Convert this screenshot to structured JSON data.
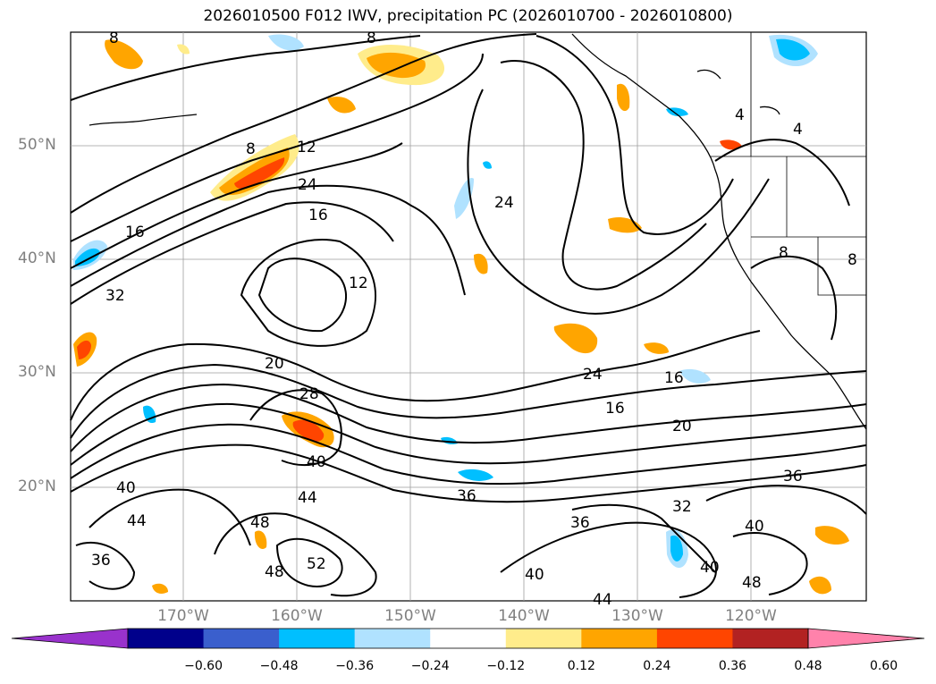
{
  "title": "2026010500 F012 IWV, precipitation PC (2026010700 - 2026010800)",
  "latitude_labels": [
    "50°N",
    "40°N",
    "30°N",
    "20°N"
  ],
  "longitude_labels": [
    "170°W",
    "160°W",
    "150°W",
    "140°W",
    "130°W",
    "120°W"
  ],
  "colorbar": {
    "tick_labels": [
      "−0.60",
      "−0.48",
      "−0.36",
      "−0.24",
      "−0.12",
      "0.12",
      "0.24",
      "0.36",
      "0.48",
      "0.60"
    ],
    "colors": [
      "#9932cc",
      "#00008b",
      "#3a5fcd",
      "#00bfff",
      "#b0e2ff",
      "#ffffff",
      "#ffec8b",
      "#ffa500",
      "#ff4500",
      "#b22222",
      "#ff82ab"
    ],
    "extend": "both"
  },
  "contour_labels": [
    {
      "text": "8"
    },
    {
      "text": "8"
    },
    {
      "text": "12"
    },
    {
      "text": "24"
    },
    {
      "text": "16"
    },
    {
      "text": "16"
    },
    {
      "text": "32"
    },
    {
      "text": "24"
    },
    {
      "text": "12"
    },
    {
      "text": "4"
    },
    {
      "text": "4"
    },
    {
      "text": "8"
    },
    {
      "text": "8"
    },
    {
      "text": "8"
    },
    {
      "text": "20"
    },
    {
      "text": "28"
    },
    {
      "text": "40"
    },
    {
      "text": "24"
    },
    {
      "text": "16"
    },
    {
      "text": "16"
    },
    {
      "text": "20"
    },
    {
      "text": "40"
    },
    {
      "text": "44"
    },
    {
      "text": "44"
    },
    {
      "text": "36"
    },
    {
      "text": "36"
    },
    {
      "text": "48"
    },
    {
      "text": "36"
    },
    {
      "text": "52"
    },
    {
      "text": "48"
    },
    {
      "text": "32"
    },
    {
      "text": "36"
    },
    {
      "text": "40"
    },
    {
      "text": "40"
    },
    {
      "text": "40"
    },
    {
      "text": "44"
    },
    {
      "text": "48"
    }
  ]
}
